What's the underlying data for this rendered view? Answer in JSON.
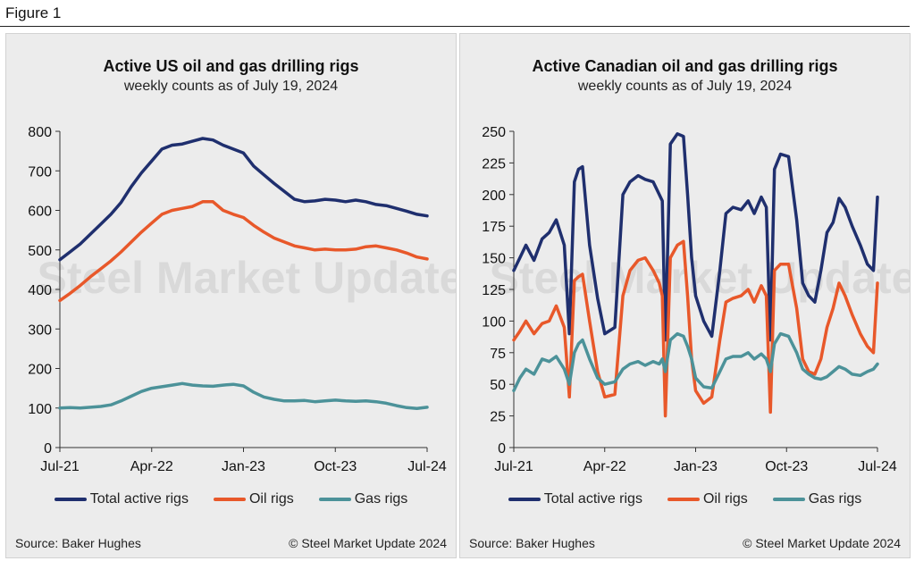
{
  "figure_title": "Figure 1",
  "panels": [
    {
      "title": "Active US oil and gas drilling rigs",
      "subtitle": "weekly counts as of July 19, 2024",
      "source": "Source: Baker Hughes",
      "copyright": "© Steel Market Update 2024"
    },
    {
      "title": "Active Canadian oil and gas drilling rigs",
      "subtitle": "weekly counts as of July 19, 2024",
      "source": "Source: Baker Hughes",
      "copyright": "© Steel Market Update 2024"
    }
  ],
  "watermark": "Steel Market Update",
  "chart_data": [
    {
      "type": "line",
      "title": "Active US oil and gas drilling rigs",
      "subtitle": "weekly counts as of July 19, 2024",
      "x_ticks": [
        "Jul-21",
        "Apr-22",
        "Jan-23",
        "Oct-23",
        "Jul-24"
      ],
      "x_range": [
        0,
        36
      ],
      "ylim": [
        0,
        800
      ],
      "y_ticks": [
        0,
        100,
        200,
        300,
        400,
        500,
        600,
        700,
        800
      ],
      "legend_position": "bottom",
      "grid": false,
      "colors": {
        "Total active rigs": "#1f2f6e",
        "Oil rigs": "#e8582a",
        "Gas rigs": "#4c9299"
      },
      "series": [
        {
          "name": "Total active rigs",
          "x": [
            0,
            1,
            2,
            3,
            4,
            5,
            6,
            7,
            8,
            9,
            10,
            11,
            12,
            13,
            14,
            15,
            16,
            17,
            18,
            19,
            20,
            21,
            22,
            23,
            24,
            25,
            26,
            27,
            28,
            29,
            30,
            31,
            32,
            33,
            34,
            35,
            36
          ],
          "values": [
            475,
            495,
            515,
            540,
            565,
            590,
            620,
            660,
            695,
            725,
            755,
            765,
            768,
            775,
            782,
            778,
            765,
            755,
            745,
            712,
            690,
            668,
            648,
            628,
            622,
            624,
            628,
            626,
            622,
            626,
            622,
            615,
            612,
            605,
            598,
            590,
            586
          ]
        },
        {
          "name": "Oil rigs",
          "x": [
            0,
            1,
            2,
            3,
            4,
            5,
            6,
            7,
            8,
            9,
            10,
            11,
            12,
            13,
            14,
            15,
            16,
            17,
            18,
            19,
            20,
            21,
            22,
            23,
            24,
            25,
            26,
            27,
            28,
            29,
            30,
            31,
            32,
            33,
            34,
            35,
            36
          ],
          "values": [
            372,
            390,
            410,
            432,
            452,
            472,
            495,
            520,
            545,
            568,
            590,
            600,
            605,
            610,
            622,
            622,
            600,
            590,
            582,
            562,
            545,
            530,
            520,
            510,
            505,
            500,
            502,
            500,
            500,
            502,
            508,
            510,
            505,
            500,
            492,
            482,
            477
          ]
        },
        {
          "name": "Gas rigs",
          "x": [
            0,
            1,
            2,
            3,
            4,
            5,
            6,
            7,
            8,
            9,
            10,
            11,
            12,
            13,
            14,
            15,
            16,
            17,
            18,
            19,
            20,
            21,
            22,
            23,
            24,
            25,
            26,
            27,
            28,
            29,
            30,
            31,
            32,
            33,
            34,
            35,
            36
          ],
          "values": [
            100,
            101,
            100,
            102,
            104,
            108,
            118,
            130,
            142,
            150,
            154,
            158,
            162,
            158,
            156,
            155,
            158,
            160,
            156,
            140,
            128,
            122,
            118,
            118,
            119,
            116,
            118,
            120,
            118,
            117,
            118,
            116,
            112,
            106,
            101,
            99,
            102
          ]
        }
      ]
    },
    {
      "type": "line",
      "title": "Active Canadian oil and gas drilling rigs",
      "subtitle": "weekly counts as of July 19, 2024",
      "x_ticks": [
        "Jul-21",
        "Apr-22",
        "Jan-23",
        "Oct-23",
        "Jul-24"
      ],
      "x_range": [
        0,
        36
      ],
      "ylim": [
        0,
        250
      ],
      "y_ticks": [
        0,
        25,
        50,
        75,
        100,
        125,
        150,
        175,
        200,
        225,
        250
      ],
      "legend_position": "bottom",
      "grid": false,
      "colors": {
        "Total active rigs": "#1f2f6e",
        "Oil rigs": "#e8582a",
        "Gas rigs": "#4c9299"
      },
      "series": [
        {
          "name": "Total active rigs",
          "x": [
            0,
            0.6,
            1.2,
            2,
            2.8,
            3.5,
            4.2,
            5,
            5.5,
            6,
            6.4,
            6.8,
            7.5,
            8.3,
            9,
            10,
            10.8,
            11.5,
            12.3,
            13,
            13.8,
            14.4,
            14.7,
            15,
            15.5,
            16.2,
            16.8,
            17.2,
            17.6,
            18,
            18.8,
            19.6,
            20.4,
            21,
            21.7,
            22.5,
            23.2,
            23.8,
            24.5,
            25,
            25.4,
            25.8,
            26.4,
            27.2,
            28,
            28.6,
            29.2,
            29.8,
            30.4,
            31,
            31.6,
            32.2,
            32.8,
            33.5,
            34.3,
            35,
            35.6,
            36
          ],
          "values": [
            140,
            150,
            160,
            148,
            165,
            170,
            180,
            160,
            90,
            210,
            220,
            222,
            160,
            118,
            90,
            95,
            200,
            210,
            215,
            212,
            210,
            200,
            195,
            85,
            240,
            248,
            246,
            200,
            150,
            120,
            100,
            88,
            140,
            185,
            190,
            188,
            195,
            185,
            198,
            190,
            85,
            220,
            232,
            230,
            180,
            130,
            120,
            115,
            140,
            170,
            178,
            197,
            190,
            175,
            160,
            145,
            140,
            198
          ]
        },
        {
          "name": "Oil rigs",
          "x": [
            0,
            0.6,
            1.2,
            2,
            2.8,
            3.5,
            4.2,
            5,
            5.5,
            6,
            6.4,
            6.8,
            7.5,
            8.3,
            9,
            10,
            10.8,
            11.5,
            12.3,
            13,
            13.8,
            14.4,
            14.7,
            15,
            15.5,
            16.2,
            16.8,
            17.2,
            17.6,
            18,
            18.8,
            19.6,
            20.4,
            21,
            21.7,
            22.5,
            23.2,
            23.8,
            24.5,
            25,
            25.4,
            25.8,
            26.4,
            27.2,
            28,
            28.6,
            29.2,
            29.8,
            30.4,
            31,
            31.6,
            32.2,
            32.8,
            33.5,
            34.3,
            35,
            35.6,
            36
          ],
          "values": [
            85,
            92,
            100,
            90,
            98,
            100,
            112,
            95,
            40,
            132,
            135,
            137,
            100,
            60,
            40,
            42,
            120,
            140,
            148,
            150,
            140,
            130,
            120,
            25,
            150,
            160,
            163,
            120,
            70,
            45,
            35,
            40,
            85,
            115,
            118,
            120,
            125,
            115,
            128,
            120,
            28,
            140,
            145,
            145,
            110,
            70,
            60,
            58,
            70,
            95,
            110,
            130,
            120,
            105,
            90,
            80,
            75,
            130
          ]
        },
        {
          "name": "Gas rigs",
          "x": [
            0,
            0.6,
            1.2,
            2,
            2.8,
            3.5,
            4.2,
            5,
            5.5,
            6,
            6.4,
            6.8,
            7.5,
            8.3,
            9,
            10,
            10.8,
            11.5,
            12.3,
            13,
            13.8,
            14.4,
            14.7,
            15,
            15.5,
            16.2,
            16.8,
            17.2,
            17.6,
            18,
            18.8,
            19.6,
            20.4,
            21,
            21.7,
            22.5,
            23.2,
            23.8,
            24.5,
            25,
            25.4,
            25.8,
            26.4,
            27.2,
            28,
            28.6,
            29.2,
            29.8,
            30.4,
            31,
            31.6,
            32.2,
            32.8,
            33.5,
            34.3,
            35,
            35.6,
            36
          ],
          "values": [
            45,
            55,
            62,
            58,
            70,
            68,
            72,
            62,
            50,
            75,
            82,
            85,
            70,
            55,
            50,
            52,
            62,
            66,
            68,
            65,
            68,
            66,
            70,
            60,
            85,
            90,
            88,
            80,
            70,
            55,
            48,
            47,
            60,
            70,
            72,
            72,
            75,
            70,
            74,
            70,
            60,
            82,
            90,
            88,
            75,
            62,
            58,
            55,
            54,
            56,
            60,
            64,
            62,
            58,
            57,
            60,
            62,
            66
          ]
        }
      ]
    }
  ]
}
